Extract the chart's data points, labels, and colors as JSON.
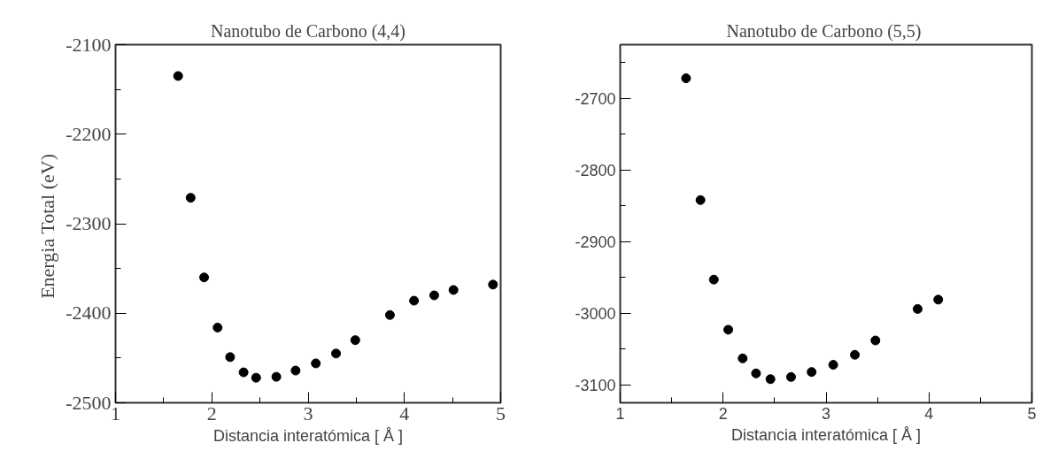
{
  "chart_data": [
    {
      "type": "scatter",
      "title": "Nanotubo de Carbono (4,4)",
      "xlabel": "Distancia interatómica [ Å ]",
      "ylabel": "Energia Total  (eV)",
      "x": [
        1.65,
        1.78,
        1.92,
        2.06,
        2.19,
        2.33,
        2.46,
        2.67,
        2.87,
        3.08,
        3.29,
        3.49,
        3.85,
        4.1,
        4.31,
        4.51,
        4.92
      ],
      "series": [
        {
          "color": "#000000",
          "values": [
            -2135,
            -2271,
            -2360,
            -2416,
            -2449,
            -2466,
            -2472,
            -2471,
            -2464,
            -2456,
            -2445,
            -2430,
            -2402,
            -2386,
            -2380,
            -2374,
            -2368
          ]
        }
      ],
      "xlim": [
        1,
        5
      ],
      "xticks": [
        1,
        2,
        3,
        4,
        5
      ],
      "ylim": [
        -2500,
        -2100
      ],
      "yticks": [
        -2500,
        -2400,
        -2300,
        -2200,
        -2100
      ],
      "marker": "circle",
      "grid": false
    },
    {
      "type": "scatter",
      "title": "Nanotubo  de Carbono (5,5)",
      "xlabel": "Distancia interatómica [ Å ]",
      "x": [
        1.64,
        1.78,
        1.91,
        2.05,
        2.19,
        2.32,
        2.46,
        2.66,
        2.86,
        3.07,
        3.28,
        3.48,
        3.89,
        4.09
      ],
      "series": [
        {
          "color": "#000000",
          "values": [
            -2672,
            -2842,
            -2953,
            -3023,
            -3063,
            -3084,
            -3092,
            -3089,
            -3082,
            -3072,
            -3058,
            -3038,
            -2994,
            -2981
          ]
        }
      ],
      "xlim": [
        1,
        5
      ],
      "xticks": [
        1,
        2,
        3,
        4,
        5
      ],
      "ylim": [
        -3125,
        -2625
      ],
      "yticks": [
        -3100,
        -3000,
        -2900,
        -2800,
        -2700
      ],
      "marker": "circle",
      "grid": false
    }
  ]
}
